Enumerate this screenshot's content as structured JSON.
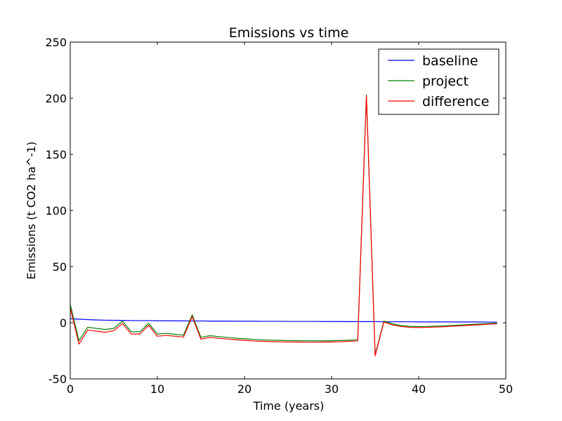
{
  "chart_data": {
    "type": "line",
    "title": "Emissions vs time",
    "xlabel": "Time (years)",
    "ylabel": "Emissions (t CO2 ha^-1)",
    "xlim": [
      0,
      50
    ],
    "ylim": [
      -50,
      250
    ],
    "xticks": [
      0,
      10,
      20,
      30,
      40,
      50
    ],
    "yticks": [
      -50,
      0,
      50,
      100,
      150,
      200,
      250
    ],
    "grid": false,
    "legend_position": "top-right",
    "x": [
      0,
      1,
      2,
      3,
      4,
      5,
      6,
      7,
      8,
      9,
      10,
      11,
      12,
      13,
      14,
      15,
      16,
      17,
      18,
      19,
      20,
      21,
      22,
      23,
      24,
      25,
      26,
      27,
      28,
      29,
      30,
      31,
      32,
      33,
      34,
      35,
      36,
      37,
      38,
      39,
      40,
      41,
      42,
      43,
      44,
      45,
      46,
      47,
      48,
      49
    ],
    "series": [
      {
        "name": "baseline",
        "color": "#0000ff",
        "values": [
          3.6,
          3.2,
          2.8,
          2.5,
          2.3,
          2.2,
          2.1,
          2.0,
          1.9,
          1.9,
          1.8,
          1.8,
          1.7,
          1.7,
          1.6,
          1.6,
          1.5,
          1.5,
          1.5,
          1.4,
          1.4,
          1.4,
          1.3,
          1.3,
          1.3,
          1.2,
          1.2,
          1.2,
          1.2,
          1.1,
          1.1,
          1.1,
          1.0,
          1.0,
          1.0,
          1.0,
          0.9,
          0.9,
          0.9,
          0.9,
          0.8,
          0.8,
          0.8,
          0.8,
          0.7,
          0.7,
          0.7,
          0.7,
          0.6,
          0.6
        ]
      },
      {
        "name": "project",
        "color": "#008000",
        "values": [
          16.5,
          -16,
          -4,
          -5,
          -6,
          -5,
          1.5,
          -8,
          -8,
          -0.5,
          -10,
          -9.5,
          -10.3,
          -11,
          7,
          -13,
          -11.5,
          -12.3,
          -13,
          -13.7,
          -14.3,
          -14.8,
          -15.2,
          -15.5,
          -15.7,
          -15.9,
          -16,
          -16.1,
          -16.1,
          -16.1,
          -16,
          -15.8,
          -15.5,
          -15.2,
          203,
          -28.5,
          1.5,
          -1,
          -2.5,
          -3.2,
          -3.4,
          -3.3,
          -3,
          -2.7,
          -2.3,
          -1.9,
          -1.5,
          -1.1,
          -0.7,
          -0.3
        ]
      },
      {
        "name": "difference",
        "color": "#ff0000",
        "values": [
          13,
          -19,
          -6.5,
          -7.5,
          -8.5,
          -7,
          -0.7,
          -10,
          -10,
          -2.3,
          -12,
          -11.3,
          -12,
          -12.7,
          5.5,
          -14.6,
          -13,
          -13.8,
          -14.5,
          -15.1,
          -15.7,
          -16.2,
          -16.5,
          -16.8,
          -17,
          -17.1,
          -17.2,
          -17.3,
          -17.3,
          -17.2,
          -17.1,
          -16.9,
          -16.5,
          -16.2,
          202,
          -29.5,
          0.6,
          -1.9,
          -3.4,
          -4.1,
          -4.2,
          -4.1,
          -3.8,
          -3.5,
          -3,
          -2.6,
          -2.2,
          -1.8,
          -1.3,
          -0.9
        ]
      }
    ]
  }
}
